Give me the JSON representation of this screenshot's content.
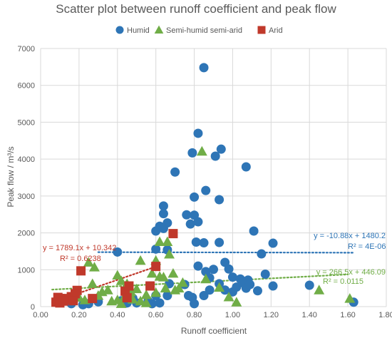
{
  "chart_data": {
    "type": "scatter",
    "title": "Scatter plot between runoff coefficient and peak flow",
    "xlabel": "Runoff coefficient",
    "ylabel": "Peak flow / m³/s",
    "xlim": [
      0,
      1.8
    ],
    "ylim": [
      0,
      7000
    ],
    "x_ticks": [
      "0.00",
      "0.20",
      "0.40",
      "0.60",
      "0.80",
      "1.00",
      "1.20",
      "1.40",
      "1.60",
      "1.80"
    ],
    "y_ticks": [
      "0",
      "1000",
      "2000",
      "3000",
      "4000",
      "5000",
      "6000",
      "7000"
    ],
    "grid": true,
    "legend_position": "top",
    "series": [
      {
        "name": "Humid",
        "color": "#2e75b6",
        "marker": "circle",
        "trendline": {
          "slope": -10.88,
          "intercept": 1480.2,
          "x_range": [
            0.3,
            1.63
          ],
          "color": "#2e75b6"
        },
        "equation": "y = -10.88x + 1480.2",
        "r2": "R² = 4E-06",
        "points": [
          [
            0.85,
            6480
          ],
          [
            0.82,
            4700
          ],
          [
            0.94,
            4270
          ],
          [
            0.79,
            4170
          ],
          [
            0.91,
            4080
          ],
          [
            1.07,
            3790
          ],
          [
            0.7,
            3650
          ],
          [
            0.86,
            3150
          ],
          [
            0.8,
            2970
          ],
          [
            0.93,
            2900
          ],
          [
            0.64,
            2730
          ],
          [
            0.66,
            2270
          ],
          [
            0.64,
            2520
          ],
          [
            0.76,
            2490
          ],
          [
            0.8,
            2480
          ],
          [
            0.78,
            2240
          ],
          [
            0.82,
            2300
          ],
          [
            0.62,
            2180
          ],
          [
            0.6,
            2050
          ],
          [
            0.64,
            2120
          ],
          [
            1.11,
            2050
          ],
          [
            1.21,
            1720
          ],
          [
            0.66,
            1540
          ],
          [
            0.81,
            1750
          ],
          [
            0.85,
            1730
          ],
          [
            0.93,
            1740
          ],
          [
            0.4,
            1480
          ],
          [
            0.6,
            1560
          ],
          [
            1.15,
            1430
          ],
          [
            0.82,
            1100
          ],
          [
            0.86,
            950
          ],
          [
            0.9,
            1010
          ],
          [
            0.96,
            1200
          ],
          [
            0.98,
            1020
          ],
          [
            1.0,
            800
          ],
          [
            1.04,
            750
          ],
          [
            1.08,
            720
          ],
          [
            1.17,
            880
          ],
          [
            0.88,
            780
          ],
          [
            0.93,
            620
          ],
          [
            0.96,
            450
          ],
          [
            0.85,
            300
          ],
          [
            0.88,
            450
          ],
          [
            1.0,
            400
          ],
          [
            1.02,
            530
          ],
          [
            1.05,
            650
          ],
          [
            1.07,
            500
          ],
          [
            1.09,
            600
          ],
          [
            1.13,
            430
          ],
          [
            1.21,
            560
          ],
          [
            1.4,
            580
          ],
          [
            0.75,
            600
          ],
          [
            0.77,
            300
          ],
          [
            0.79,
            250
          ],
          [
            0.8,
            80
          ],
          [
            0.56,
            150
          ],
          [
            0.58,
            80
          ],
          [
            0.62,
            100
          ],
          [
            0.66,
            300
          ],
          [
            0.5,
            100
          ],
          [
            0.48,
            230
          ],
          [
            0.45,
            100
          ],
          [
            0.42,
            160
          ],
          [
            0.25,
            80
          ],
          [
            0.3,
            130
          ],
          [
            0.16,
            80
          ],
          [
            0.22,
            50
          ],
          [
            1.63,
            120
          ],
          [
            0.6,
            300
          ],
          [
            0.67,
            620
          ]
        ]
      },
      {
        "name": "Semi-humid semi-arid",
        "color": "#70ad47",
        "marker": "triangle",
        "trendline": {
          "slope": 266.5,
          "intercept": 446.09,
          "x_range": [
            0.06,
            1.6
          ],
          "color": "#70ad47"
        },
        "equation": "y = 266.5x + 446.09",
        "r2": "R² = 0.0115",
        "points": [
          [
            0.84,
            4210
          ],
          [
            0.62,
            1760
          ],
          [
            0.66,
            1760
          ],
          [
            0.67,
            1420
          ],
          [
            0.6,
            1250
          ],
          [
            0.52,
            1250
          ],
          [
            0.25,
            1200
          ],
          [
            0.28,
            1070
          ],
          [
            0.27,
            620
          ],
          [
            0.32,
            400
          ],
          [
            0.35,
            450
          ],
          [
            0.4,
            850
          ],
          [
            0.42,
            700
          ],
          [
            0.45,
            620
          ],
          [
            0.47,
            400
          ],
          [
            0.5,
            480
          ],
          [
            0.55,
            320
          ],
          [
            0.58,
            900
          ],
          [
            0.62,
            820
          ],
          [
            0.64,
            800
          ],
          [
            0.69,
            900
          ],
          [
            0.65,
            500
          ],
          [
            0.7,
            450
          ],
          [
            0.72,
            500
          ],
          [
            0.74,
            650
          ],
          [
            0.86,
            750
          ],
          [
            0.93,
            520
          ],
          [
            0.98,
            260
          ],
          [
            1.02,
            120
          ],
          [
            0.4,
            180
          ],
          [
            0.44,
            300
          ],
          [
            0.48,
            200
          ],
          [
            0.52,
            150
          ],
          [
            0.37,
            150
          ],
          [
            0.3,
            300
          ],
          [
            0.23,
            180
          ],
          [
            0.2,
            250
          ],
          [
            1.45,
            450
          ],
          [
            1.61,
            220
          ],
          [
            0.42,
            80
          ],
          [
            0.55,
            100
          ],
          [
            0.6,
            380
          ]
        ]
      },
      {
        "name": "Arid",
        "color": "#c0392b",
        "marker": "square",
        "trendline": {
          "slope": 1789.1,
          "intercept": 10.342,
          "x_range": [
            0.06,
            0.6
          ],
          "color": "#c0392b"
        },
        "equation": "y = 1789.1x + 10.342",
        "r2": "R² = 0.6238",
        "points": [
          [
            0.69,
            1980
          ],
          [
            0.6,
            1090
          ],
          [
            0.21,
            970
          ],
          [
            0.44,
            420
          ],
          [
            0.46,
            560
          ],
          [
            0.57,
            560
          ],
          [
            0.19,
            440
          ],
          [
            0.18,
            350
          ],
          [
            0.16,
            270
          ],
          [
            0.14,
            220
          ],
          [
            0.13,
            200
          ],
          [
            0.11,
            180
          ],
          [
            0.1,
            220
          ],
          [
            0.09,
            250
          ],
          [
            0.08,
            120
          ],
          [
            0.1,
            100
          ],
          [
            0.12,
            150
          ],
          [
            0.17,
            160
          ],
          [
            0.27,
            220
          ],
          [
            0.45,
            240
          ]
        ]
      }
    ]
  }
}
